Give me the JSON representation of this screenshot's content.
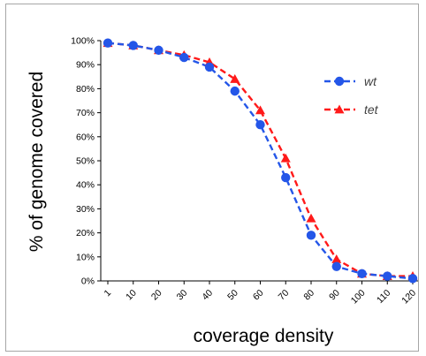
{
  "chart_data": {
    "type": "line",
    "xlabel": "coverage density",
    "ylabel": "% of genome covered",
    "categories": [
      "1",
      "10",
      "20",
      "30",
      "40",
      "50",
      "60",
      "70",
      "80",
      "90",
      "100",
      "110",
      "120"
    ],
    "x_ticks": [
      "1",
      "10",
      "20",
      "30",
      "40",
      "50",
      "60",
      "70",
      "80",
      "90",
      "100",
      "110",
      "120"
    ],
    "y_ticks": [
      "0%",
      "10%",
      "20%",
      "30%",
      "40%",
      "50%",
      "60%",
      "70%",
      "80%",
      "90%",
      "100%"
    ],
    "ylim": [
      0,
      100
    ],
    "y_unit": "%",
    "grid": false,
    "legend_position": "right",
    "series": [
      {
        "name": "wt",
        "color": "#2456e8",
        "marker": "circle",
        "line_style": "dashed",
        "values": [
          99,
          98,
          96,
          93,
          89,
          79,
          65,
          43,
          19,
          6,
          3,
          2,
          1
        ]
      },
      {
        "name": "tet",
        "color": "#ff1a1a",
        "marker": "triangle",
        "line_style": "dashed",
        "values": [
          99,
          98,
          96,
          94,
          91,
          84,
          71,
          51,
          26,
          9,
          3,
          2,
          2
        ]
      }
    ]
  }
}
